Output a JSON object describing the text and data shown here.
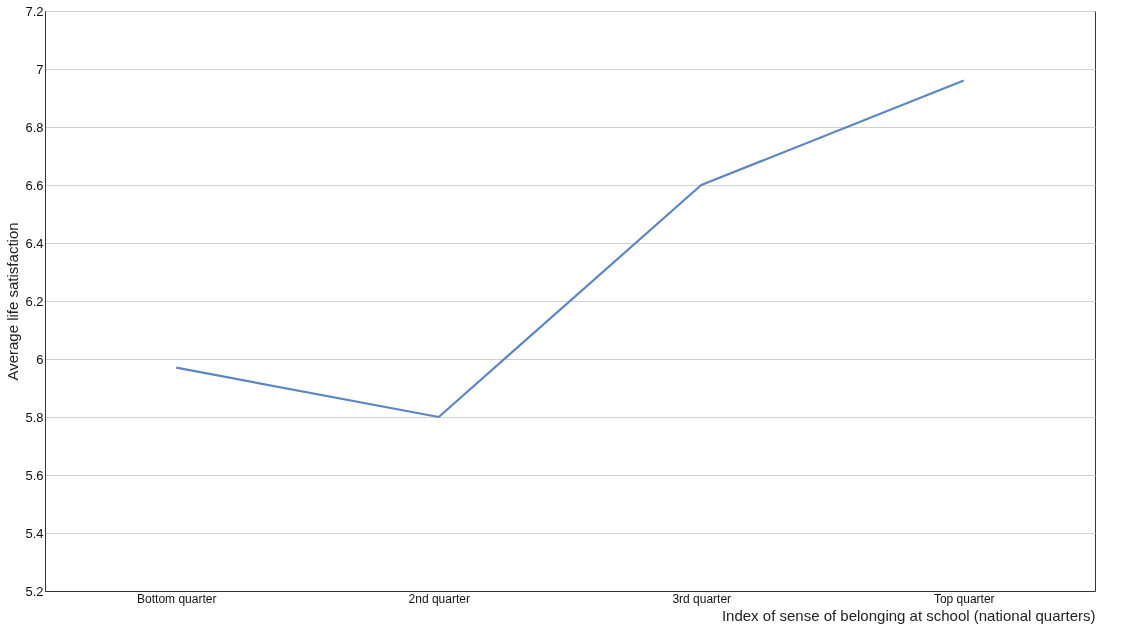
{
  "chart_data": {
    "type": "line",
    "xlabel": "Index of sense of belonging at school (national quarters)",
    "ylabel": "Average life satisfaction",
    "categories": [
      "Bottom quarter",
      "2nd quarter",
      "3rd quarter",
      "Top quarter"
    ],
    "series": [
      {
        "color": "#5b86c2",
        "values": [
          5.97,
          5.8,
          6.6,
          6.96
        ]
      }
    ],
    "ylim": [
      5.2,
      7.2
    ],
    "yticks": [
      5.2,
      5.4,
      5.6,
      5.8,
      6,
      6.2,
      6.4,
      6.6,
      6.8,
      7,
      7.2
    ],
    "grid": "y",
    "marker": "none",
    "line_style": "solid"
  }
}
